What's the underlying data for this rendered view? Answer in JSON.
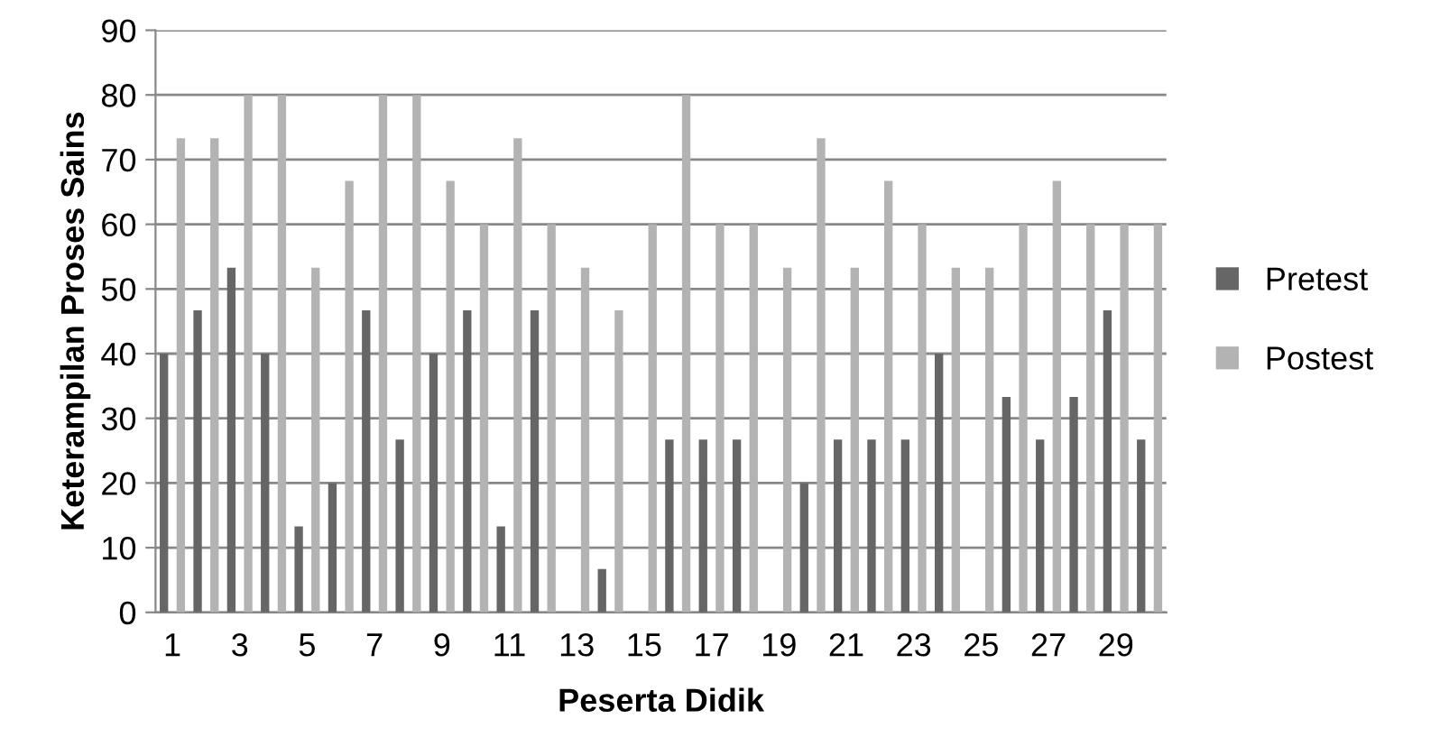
{
  "chart_data": {
    "type": "bar",
    "xlabel": "Peserta Didik",
    "ylabel": "Keterampilan Proses Sains",
    "categories": [
      "1",
      null,
      "3",
      null,
      "5",
      null,
      "7",
      null,
      "9",
      null,
      "11",
      null,
      "13",
      null,
      "15",
      null,
      "17",
      null,
      "19",
      null,
      "21",
      null,
      "23",
      null,
      "25",
      null,
      "27",
      null,
      "29",
      null
    ],
    "series": [
      {
        "name": "Pretest",
        "color": "#666666",
        "values": [
          40,
          46.7,
          53.3,
          40,
          13.3,
          20,
          46.7,
          26.7,
          40,
          46.7,
          13.3,
          46.7,
          0,
          6.7,
          0,
          26.7,
          26.7,
          26.7,
          0,
          20,
          26.7,
          26.7,
          26.7,
          40,
          0,
          33.3,
          26.7,
          33.3,
          46.7,
          26.7
        ]
      },
      {
        "name": "Postest",
        "color": "#b3b3b3",
        "values": [
          73.3,
          73.3,
          80,
          80,
          53.3,
          66.7,
          80,
          80,
          66.7,
          60,
          73.3,
          60,
          53.3,
          46.7,
          60,
          80,
          60,
          60,
          53.3,
          73.3,
          53.3,
          66.7,
          60,
          53.3,
          53.3,
          60,
          66.7,
          60,
          60,
          60
        ]
      }
    ],
    "ylim": [
      0,
      90
    ],
    "yticks": [
      0,
      10,
      20,
      30,
      40,
      50,
      60,
      70,
      80,
      90
    ],
    "grid": "y",
    "legend": "right"
  }
}
